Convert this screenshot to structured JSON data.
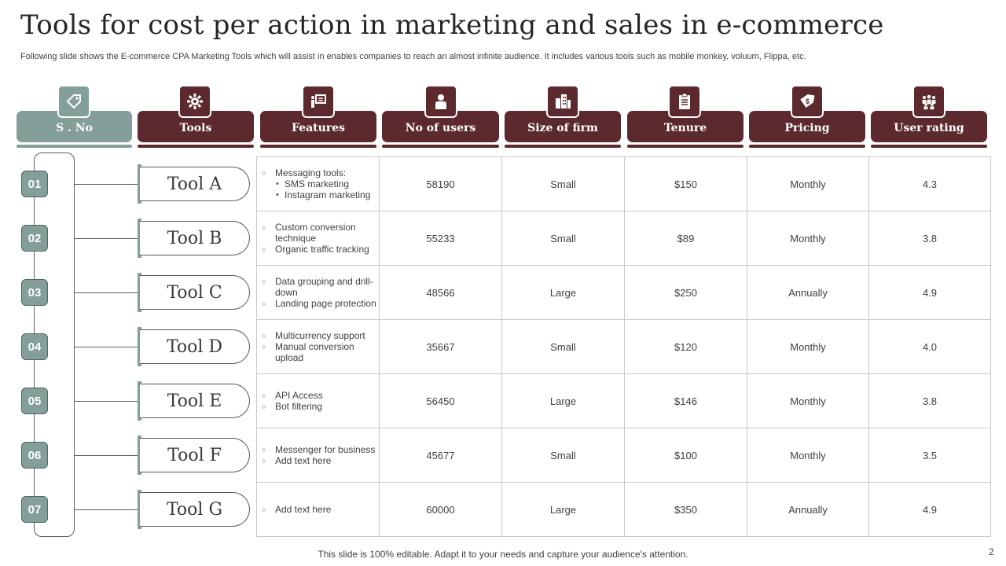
{
  "title": "Tools for cost per action in marketing and sales in e-commerce",
  "subtitle": "Following slide shows the E-commerce CPA Marketing Tools which will assist in enables companies to reach an almost infinite audience. It includes various tools such as mobile monkey, voluum, Flippa, etc.",
  "headers": [
    {
      "label": "S . No",
      "icon": "price-tag-icon"
    },
    {
      "label": "Tools",
      "icon": "gear-cog-icon"
    },
    {
      "label": "Features",
      "icon": "presentation-board-icon"
    },
    {
      "label": "No of users",
      "icon": "user-icon"
    },
    {
      "label": "Size of firm",
      "icon": "building-icon"
    },
    {
      "label": "Tenure",
      "icon": "clipboard-icon"
    },
    {
      "label": "Pricing",
      "icon": "dollar-tag-icon"
    },
    {
      "label": "User rating",
      "icon": "group-icon"
    }
  ],
  "rows": [
    {
      "num": "01",
      "tool": "Tool A",
      "features": [
        "Messaging tools:"
      ],
      "subfeatures": [
        "SMS marketing",
        "Instagram marketing"
      ],
      "users": "58190",
      "size": "Small",
      "tenure": "$150",
      "pricing": "Monthly",
      "rating": "4.3"
    },
    {
      "num": "02",
      "tool": "Tool B",
      "features": [
        "Custom conversion technique",
        "Organic traffic tracking"
      ],
      "users": "55233",
      "size": "Small",
      "tenure": "$89",
      "pricing": "Monthly",
      "rating": "3.8"
    },
    {
      "num": "03",
      "tool": "Tool C",
      "features": [
        "Data grouping and drill-down",
        "Landing page protection"
      ],
      "users": "48566",
      "size": "Large",
      "tenure": "$250",
      "pricing": "Annually",
      "rating": "4.9"
    },
    {
      "num": "04",
      "tool": "Tool D",
      "features": [
        "Multicurrency support",
        "Manual conversion upload"
      ],
      "users": "35667",
      "size": "Small",
      "tenure": "$120",
      "pricing": "Monthly",
      "rating": "4.0"
    },
    {
      "num": "05",
      "tool": "Tool E",
      "features": [
        "API Access",
        "Bot filtering"
      ],
      "users": "56450",
      "size": "Large",
      "tenure": "$146",
      "pricing": "Monthly",
      "rating": "3.8"
    },
    {
      "num": "06",
      "tool": "Tool F",
      "features": [
        "Messenger for business",
        "Add text here"
      ],
      "users": "45677",
      "size": "Small",
      "tenure": "$100",
      "pricing": "Monthly",
      "rating": "3.5"
    },
    {
      "num": "07",
      "tool": "Tool G",
      "features": [
        "Add text here"
      ],
      "users": "60000",
      "size": "Large",
      "tenure": "$350",
      "pricing": "Annually",
      "rating": "4.9"
    }
  ],
  "footer": "This slide is 100% editable. Adapt it to your needs and capture your audience's attention.",
  "page_number": "2",
  "colors": {
    "maroon": "#5c2a2e",
    "sage": "#849e9a",
    "border": "#c9c9c9"
  }
}
